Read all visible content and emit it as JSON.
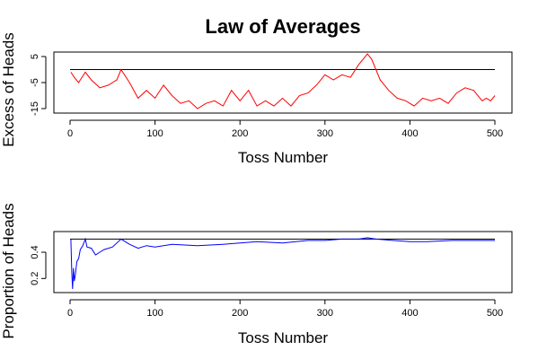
{
  "chart_data": [
    {
      "type": "line",
      "title": "Law of Averages",
      "xlabel": "Toss Number",
      "ylabel": "Excess of Heads",
      "xlim": [
        0,
        500
      ],
      "ylim": [
        -15,
        5
      ],
      "xticks": [
        "0",
        "100",
        "200",
        "300",
        "400",
        "500"
      ],
      "yticks": [
        "-15",
        "-5",
        "5"
      ],
      "reference_line": 0,
      "reference_color": "#000000",
      "series": [
        {
          "color": "#ff0000",
          "x": [
            1,
            5,
            10,
            18,
            25,
            35,
            45,
            55,
            60,
            70,
            80,
            90,
            100,
            110,
            120,
            130,
            140,
            150,
            160,
            170,
            180,
            190,
            200,
            210,
            220,
            230,
            240,
            250,
            260,
            270,
            280,
            290,
            300,
            310,
            320,
            330,
            340,
            350,
            355,
            365,
            375,
            385,
            395,
            405,
            415,
            425,
            435,
            445,
            455,
            465,
            475,
            485,
            490,
            495,
            500
          ],
          "y": [
            -1,
            -3,
            -5,
            -1,
            -4,
            -7,
            -6,
            -4,
            0,
            -5,
            -11,
            -8,
            -11,
            -6,
            -10,
            -13,
            -12,
            -15,
            -13,
            -12,
            -14,
            -8,
            -12,
            -8,
            -14,
            -12,
            -14,
            -11,
            -14,
            -10,
            -9,
            -6,
            -2,
            -4,
            -2,
            -3,
            2,
            6,
            4,
            -4,
            -8,
            -11,
            -12,
            -14,
            -11,
            -12,
            -11,
            -13,
            -9,
            -7,
            -8,
            -12,
            -11,
            -12,
            -10
          ]
        }
      ]
    },
    {
      "type": "line",
      "title": "",
      "xlabel": "Toss Number",
      "ylabel": "Proportion of Heads",
      "xlim": [
        0,
        500
      ],
      "ylim": [
        0.12,
        0.53
      ],
      "xticks": [
        "0",
        "100",
        "200",
        "300",
        "400",
        "500"
      ],
      "yticks": [
        "0.2",
        "0.4"
      ],
      "reference_line": 0.5,
      "reference_color": "#000000",
      "series": [
        {
          "color": "#0000ff",
          "x": [
            1,
            2,
            3,
            4,
            5,
            6,
            8,
            10,
            12,
            15,
            18,
            20,
            25,
            30,
            35,
            40,
            50,
            60,
            70,
            80,
            90,
            100,
            120,
            150,
            180,
            200,
            220,
            250,
            280,
            300,
            320,
            340,
            350,
            360,
            380,
            400,
            420,
            450,
            480,
            500
          ],
          "y": [
            0.5,
            0.25,
            0.12,
            0.28,
            0.18,
            0.22,
            0.33,
            0.35,
            0.42,
            0.45,
            0.5,
            0.44,
            0.43,
            0.38,
            0.4,
            0.42,
            0.44,
            0.5,
            0.46,
            0.43,
            0.45,
            0.44,
            0.46,
            0.45,
            0.46,
            0.47,
            0.48,
            0.47,
            0.49,
            0.49,
            0.5,
            0.5,
            0.51,
            0.5,
            0.49,
            0.48,
            0.48,
            0.49,
            0.49,
            0.49
          ]
        }
      ]
    }
  ]
}
